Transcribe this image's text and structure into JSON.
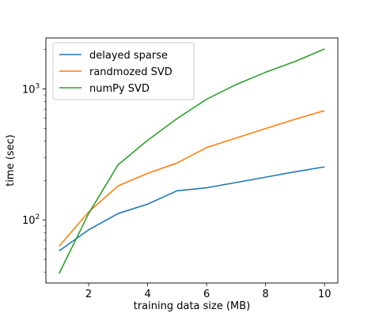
{
  "chart_data": {
    "type": "line",
    "title": "",
    "xlabel": "training data size (MB)",
    "ylabel": "time (sec)",
    "xlim": [
      0.55,
      10.45
    ],
    "ylim": [
      33,
      2450
    ],
    "yscale": "log",
    "grid": false,
    "legend_position": "top-left",
    "xticks": [
      2,
      4,
      6,
      8,
      10
    ],
    "xtick_labels": [
      "2",
      "4",
      "6",
      "8",
      "10"
    ],
    "yticks_major": [
      {
        "value": 100,
        "base": "10",
        "exp": "2"
      },
      {
        "value": 1000,
        "base": "10",
        "exp": "3"
      }
    ],
    "yticks_minor": [
      40,
      50,
      60,
      70,
      80,
      90,
      200,
      300,
      400,
      500,
      600,
      700,
      800,
      900,
      2000
    ],
    "x": [
      1,
      2,
      3,
      4,
      5,
      6,
      7,
      8,
      9,
      10
    ],
    "series": [
      {
        "name": "delayed sparse",
        "color": "#1f77b4",
        "values": [
          58,
          84,
          112,
          132,
          167,
          176,
          193,
          212,
          233,
          254
        ]
      },
      {
        "name": "randmozed SVD",
        "color": "#ff7f0e",
        "values": [
          63,
          115,
          182,
          227,
          272,
          357,
          422,
          498,
          587,
          683
        ]
      },
      {
        "name": "numPy SVD",
        "color": "#2ca02c",
        "values": [
          39,
          112,
          264,
          405,
          594,
          834,
          1080,
          1340,
          1620,
          2020
        ]
      }
    ]
  }
}
